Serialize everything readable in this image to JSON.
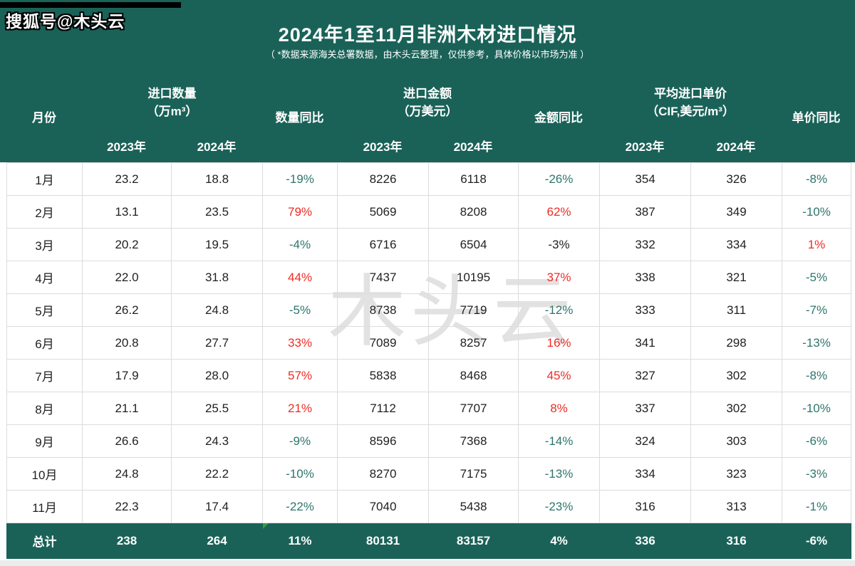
{
  "page": {
    "badge": "搜狐号@木头云",
    "title": "2024年1至11月非洲木材进口情况",
    "subtitle": "（ *数据来源海关总署数据，由木头云整理，仅供参考，具体价格以市场为准 ）",
    "watermark": "木头云"
  },
  "colors": {
    "header_teal": "#1A6258",
    "negative_teal": "#2E756C",
    "positive_red": "#ED2C23",
    "grid_line": "#dcdcdc",
    "body_text": "#1f1f1f",
    "marker_green": "#2f9e44"
  },
  "table": {
    "group_headers": {
      "month": "月份",
      "quantity_line1": "进口数量",
      "quantity_line2": "（万m³）",
      "quantity_yoy": "数量同比",
      "amount_line1": "进口金额",
      "amount_line2": "（万美元）",
      "amount_yoy": "金额同比",
      "unit_price_line1": "平均进口单价",
      "unit_price_line2": "（CIF,美元/m³）",
      "unit_price_yoy": "单价同比"
    },
    "year_headers": [
      "2023年",
      "2024年",
      "2023年",
      "2024年",
      "2023年",
      "2024年"
    ],
    "rows": [
      {
        "month": "1月",
        "qty_2023": "23.2",
        "qty_2024": "18.8",
        "qty_yoy": {
          "text": "-19%",
          "color": "teal"
        },
        "amt_2023": "8226",
        "amt_2024": "6118",
        "amt_yoy": {
          "text": "-26%",
          "color": "teal"
        },
        "price_2023": "354",
        "price_2024": "326",
        "price_yoy": {
          "text": "-8%",
          "color": "teal"
        }
      },
      {
        "month": "2月",
        "qty_2023": "13.1",
        "qty_2024": "23.5",
        "qty_yoy": {
          "text": "79%",
          "color": "red"
        },
        "amt_2023": "5069",
        "amt_2024": "8208",
        "amt_yoy": {
          "text": "62%",
          "color": "red"
        },
        "price_2023": "387",
        "price_2024": "349",
        "price_yoy": {
          "text": "-10%",
          "color": "teal"
        }
      },
      {
        "month": "3月",
        "qty_2023": "20.2",
        "qty_2024": "19.5",
        "qty_yoy": {
          "text": "-4%",
          "color": "teal"
        },
        "amt_2023": "6716",
        "amt_2024": "6504",
        "amt_yoy": {
          "text": "-3%",
          "color": "black"
        },
        "price_2023": "332",
        "price_2024": "334",
        "price_yoy": {
          "text": "1%",
          "color": "red"
        }
      },
      {
        "month": "4月",
        "qty_2023": "22.0",
        "qty_2024": "31.8",
        "qty_yoy": {
          "text": "44%",
          "color": "red"
        },
        "amt_2023": "7437",
        "amt_2024": "10195",
        "amt_yoy": {
          "text": "37%",
          "color": "red"
        },
        "price_2023": "338",
        "price_2024": "321",
        "price_yoy": {
          "text": "-5%",
          "color": "teal"
        }
      },
      {
        "month": "5月",
        "qty_2023": "26.2",
        "qty_2024": "24.8",
        "qty_yoy": {
          "text": "-5%",
          "color": "teal"
        },
        "amt_2023": "8738",
        "amt_2024": "7719",
        "amt_yoy": {
          "text": "-12%",
          "color": "teal"
        },
        "price_2023": "333",
        "price_2024": "311",
        "price_yoy": {
          "text": "-7%",
          "color": "teal"
        }
      },
      {
        "month": "6月",
        "qty_2023": "20.8",
        "qty_2024": "27.7",
        "qty_yoy": {
          "text": "33%",
          "color": "red"
        },
        "amt_2023": "7089",
        "amt_2024": "8257",
        "amt_yoy": {
          "text": "16%",
          "color": "red"
        },
        "price_2023": "341",
        "price_2024": "298",
        "price_yoy": {
          "text": "-13%",
          "color": "teal"
        }
      },
      {
        "month": "7月",
        "qty_2023": "17.9",
        "qty_2024": "28.0",
        "qty_yoy": {
          "text": "57%",
          "color": "red"
        },
        "amt_2023": "5838",
        "amt_2024": "8468",
        "amt_yoy": {
          "text": "45%",
          "color": "red"
        },
        "price_2023": "327",
        "price_2024": "302",
        "price_yoy": {
          "text": "-8%",
          "color": "teal"
        }
      },
      {
        "month": "8月",
        "qty_2023": "21.1",
        "qty_2024": "25.5",
        "qty_yoy": {
          "text": "21%",
          "color": "red"
        },
        "amt_2023": "7112",
        "amt_2024": "7707",
        "amt_yoy": {
          "text": "8%",
          "color": "red"
        },
        "price_2023": "337",
        "price_2024": "302",
        "price_yoy": {
          "text": "-10%",
          "color": "teal"
        }
      },
      {
        "month": "9月",
        "qty_2023": "26.6",
        "qty_2024": "24.3",
        "qty_yoy": {
          "text": "-9%",
          "color": "teal"
        },
        "amt_2023": "8596",
        "amt_2024": "7368",
        "amt_yoy": {
          "text": "-14%",
          "color": "teal"
        },
        "price_2023": "324",
        "price_2024": "303",
        "price_yoy": {
          "text": "-6%",
          "color": "teal"
        }
      },
      {
        "month": "10月",
        "qty_2023": "24.8",
        "qty_2024": "22.2",
        "qty_yoy": {
          "text": "-10%",
          "color": "teal"
        },
        "amt_2023": "8270",
        "amt_2024": "7175",
        "amt_yoy": {
          "text": "-13%",
          "color": "teal"
        },
        "price_2023": "334",
        "price_2024": "323",
        "price_yoy": {
          "text": "-3%",
          "color": "teal"
        }
      },
      {
        "month": "11月",
        "qty_2023": "22.3",
        "qty_2024": "17.4",
        "qty_yoy": {
          "text": "-22%",
          "color": "teal"
        },
        "amt_2023": "7040",
        "amt_2024": "5438",
        "amt_yoy": {
          "text": "-23%",
          "color": "teal"
        },
        "price_2023": "316",
        "price_2024": "313",
        "price_yoy": {
          "text": "-1%",
          "color": "teal"
        }
      }
    ],
    "total": {
      "month": "总计",
      "qty_2023": "238",
      "qty_2024": "264",
      "qty_yoy": {
        "text": "11%",
        "color": "white",
        "marker": "green-triangle"
      },
      "amt_2023": "80131",
      "amt_2024": "83157",
      "amt_yoy": {
        "text": "4%",
        "color": "white"
      },
      "price_2023": "336",
      "price_2024": "316",
      "price_yoy": {
        "text": "-6%",
        "color": "white"
      }
    }
  },
  "chart_data": {
    "type": "table",
    "title": "2024年1至11月非洲木材进口情况",
    "subtitle": "*数据来源海关总署数据，由木头云整理，仅供参考，具体价格以市场为准",
    "columns": [
      "月份",
      "进口数量 2023年（万m³）",
      "进口数量 2024年（万m³）",
      "数量同比",
      "进口金额 2023年（万美元）",
      "进口金额 2024年（万美元）",
      "金额同比",
      "平均进口单价 2023年（CIF,美元/m³）",
      "平均进口单价 2024年（CIF,美元/m³）",
      "单价同比"
    ],
    "rows": [
      [
        "1月",
        23.2,
        18.8,
        "-19%",
        8226,
        6118,
        "-26%",
        354,
        326,
        "-8%"
      ],
      [
        "2月",
        13.1,
        23.5,
        "79%",
        5069,
        8208,
        "62%",
        387,
        349,
        "-10%"
      ],
      [
        "3月",
        20.2,
        19.5,
        "-4%",
        6716,
        6504,
        "-3%",
        332,
        334,
        "1%"
      ],
      [
        "4月",
        22.0,
        31.8,
        "44%",
        7437,
        10195,
        "37%",
        338,
        321,
        "-5%"
      ],
      [
        "5月",
        26.2,
        24.8,
        "-5%",
        8738,
        7719,
        "-12%",
        333,
        311,
        "-7%"
      ],
      [
        "6月",
        20.8,
        27.7,
        "33%",
        7089,
        8257,
        "16%",
        341,
        298,
        "-13%"
      ],
      [
        "7月",
        17.9,
        28.0,
        "57%",
        5838,
        8468,
        "45%",
        327,
        302,
        "-8%"
      ],
      [
        "8月",
        21.1,
        25.5,
        "21%",
        7112,
        7707,
        "8%",
        337,
        302,
        "-10%"
      ],
      [
        "9月",
        26.6,
        24.3,
        "-9%",
        8596,
        7368,
        "-14%",
        324,
        303,
        "-6%"
      ],
      [
        "10月",
        24.8,
        22.2,
        "-10%",
        8270,
        7175,
        "-13%",
        334,
        323,
        "-3%"
      ],
      [
        "11月",
        22.3,
        17.4,
        "-22%",
        7040,
        5438,
        "-23%",
        316,
        313,
        "-1%"
      ],
      [
        "总计",
        238,
        264,
        "11%",
        80131,
        83157,
        "4%",
        336,
        316,
        "-6%"
      ]
    ]
  }
}
